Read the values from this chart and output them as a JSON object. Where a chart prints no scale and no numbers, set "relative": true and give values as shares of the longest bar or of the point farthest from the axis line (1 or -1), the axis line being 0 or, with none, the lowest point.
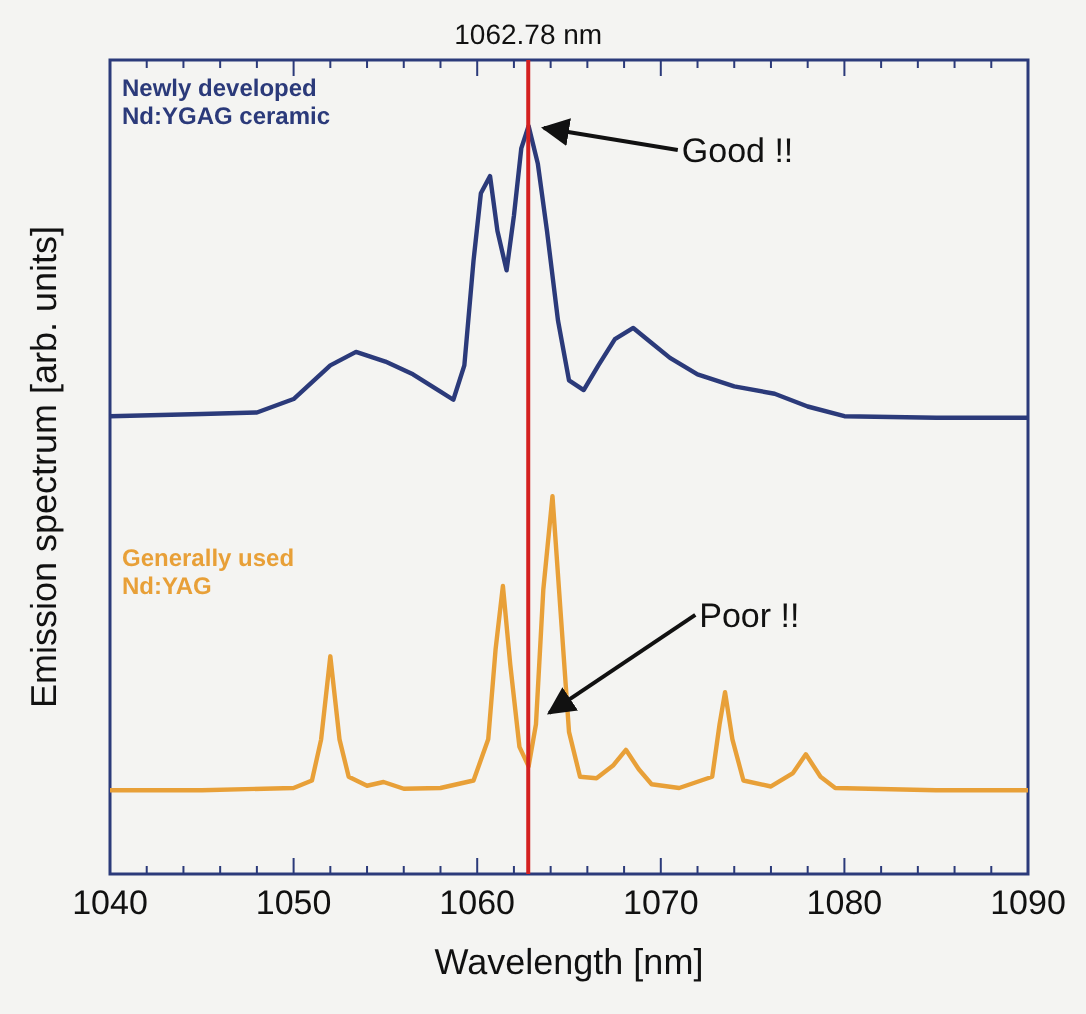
{
  "chart_data": {
    "type": "line",
    "relative": true,
    "xlabel": "Wavelength [nm]",
    "ylabel": "Emission spectrum [arb. units]",
    "xlim": [
      1040,
      1090
    ],
    "xticks": [
      1040,
      {
        "value": 1042,
        "label": null
      },
      {
        "value": 1044,
        "label": null
      },
      {
        "value": 1046,
        "label": null
      },
      {
        "value": 1048,
        "label": null
      },
      1050,
      {
        "value": 1052,
        "label": null
      },
      {
        "value": 1054,
        "label": null
      },
      {
        "value": 1056,
        "label": null
      },
      {
        "value": 1058,
        "label": null
      },
      1060,
      {
        "value": 1062,
        "label": null
      },
      {
        "value": 1064,
        "label": null
      },
      {
        "value": 1066,
        "label": null
      },
      {
        "value": 1068,
        "label": null
      },
      1070,
      {
        "value": 1072,
        "label": null
      },
      {
        "value": 1074,
        "label": null
      },
      {
        "value": 1076,
        "label": null
      },
      {
        "value": 1078,
        "label": null
      },
      1080,
      {
        "value": 1082,
        "label": null
      },
      {
        "value": 1084,
        "label": null
      },
      {
        "value": 1086,
        "label": null
      },
      {
        "value": 1088,
        "label": null
      },
      1090
    ],
    "series": [
      {
        "name": "Newly developed Nd:YGAG ceramic",
        "color": "#2b3a7a",
        "x": [
          1040,
          1045,
          1048,
          1050,
          1052,
          1053.4,
          1055,
          1056.5,
          1058,
          1058.7,
          1059.3,
          1059.8,
          1060.2,
          1060.7,
          1061.1,
          1061.6,
          1062.0,
          1062.4,
          1062.8,
          1063.3,
          1063.8,
          1064.4,
          1065.0,
          1065.8,
          1066.6,
          1067.5,
          1068.5,
          1069.5,
          1070.5,
          1072,
          1074,
          1076.2,
          1078,
          1080,
          1085,
          1090
        ],
        "values": [
          0.612,
          0.615,
          0.617,
          0.635,
          0.68,
          0.698,
          0.685,
          0.668,
          0.645,
          0.634,
          0.68,
          0.82,
          0.91,
          0.933,
          0.86,
          0.807,
          0.88,
          0.97,
          1.0,
          0.95,
          0.86,
          0.74,
          0.66,
          0.647,
          0.68,
          0.715,
          0.73,
          0.71,
          0.69,
          0.668,
          0.652,
          0.642,
          0.625,
          0.612,
          0.61,
          0.61
        ]
      },
      {
        "name": "Generally used Nd:YAG",
        "color": "#e8a038",
        "x": [
          1040,
          1045,
          1050,
          1051,
          1051.5,
          1052.0,
          1052.5,
          1053,
          1054,
          1054.9,
          1056,
          1058,
          1059.8,
          1060.6,
          1061.0,
          1061.4,
          1061.8,
          1062.3,
          1062.8,
          1063.2,
          1063.6,
          1064.1,
          1064.6,
          1065,
          1065.6,
          1066.5,
          1067.4,
          1068.1,
          1068.8,
          1069.5,
          1071,
          1072.8,
          1073.2,
          1073.5,
          1073.9,
          1074.5,
          1076,
          1077.2,
          1077.9,
          1078.7,
          1079.5,
          1085,
          1090
        ],
        "values": [
          0.112,
          0.112,
          0.115,
          0.125,
          0.18,
          0.291,
          0.18,
          0.13,
          0.118,
          0.123,
          0.114,
          0.115,
          0.125,
          0.18,
          0.3,
          0.385,
          0.28,
          0.17,
          0.144,
          0.2,
          0.38,
          0.505,
          0.33,
          0.19,
          0.13,
          0.128,
          0.145,
          0.166,
          0.14,
          0.12,
          0.115,
          0.13,
          0.2,
          0.243,
          0.18,
          0.125,
          0.117,
          0.135,
          0.16,
          0.13,
          0.115,
          0.112,
          0.112
        ]
      }
    ],
    "ref_lines": [
      {
        "axis": "x",
        "value": 1062.78,
        "label": "1062.78 nm",
        "color": "#d42020"
      }
    ],
    "annotations": [
      {
        "text": "Good !!",
        "x": 1063.3,
        "y": 1.0
      },
      {
        "text": "Poor !!",
        "x": 1063.6,
        "y": 0.21
      }
    ]
  }
}
